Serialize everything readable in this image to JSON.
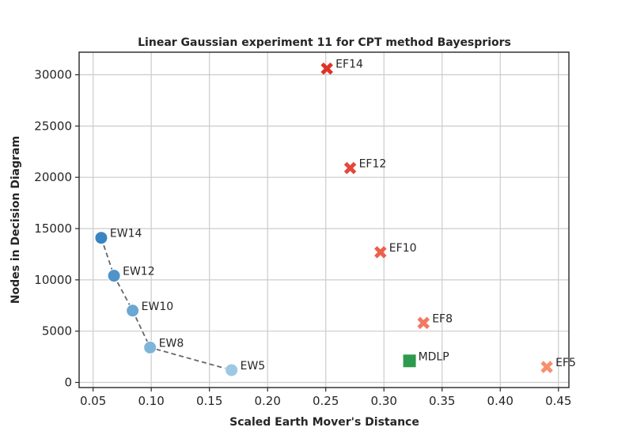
{
  "chart_data": {
    "type": "scatter",
    "title": "Linear Gaussian experiment 11 for CPT method Bayespriors",
    "xlabel": "Scaled Earth Mover's Distance",
    "ylabel": "Nodes in Decision Diagram",
    "xlim": [
      0.038,
      0.459
    ],
    "ylim": [
      -500,
      32200
    ],
    "xticks": [
      0.05,
      0.1,
      0.15,
      0.2,
      0.25,
      0.3,
      0.35,
      0.4,
      0.45
    ],
    "xtick_labels": [
      "0.05",
      "0.10",
      "0.15",
      "0.20",
      "0.25",
      "0.30",
      "0.35",
      "0.40",
      "0.45"
    ],
    "yticks": [
      0,
      5000,
      10000,
      15000,
      20000,
      25000,
      30000
    ],
    "ytick_labels": [
      "0",
      "5000",
      "10000",
      "15000",
      "20000",
      "25000",
      "30000"
    ],
    "grid": true,
    "series": [
      {
        "marker": "circle",
        "connected": true,
        "points": [
          {
            "label": "EW14",
            "x": 0.057,
            "y": 14100,
            "color": "#3a84c3"
          },
          {
            "label": "EW12",
            "x": 0.068,
            "y": 10400,
            "color": "#4f93c9"
          },
          {
            "label": "EW10",
            "x": 0.084,
            "y": 7000,
            "color": "#6aa7d2"
          },
          {
            "label": "EW8",
            "x": 0.099,
            "y": 3400,
            "color": "#7fb4d9"
          },
          {
            "label": "EW5",
            "x": 0.169,
            "y": 1200,
            "color": "#9cc8e3"
          }
        ]
      },
      {
        "marker": "x",
        "connected": false,
        "points": [
          {
            "label": "EF14",
            "x": 0.251,
            "y": 30600,
            "color": "#e03127"
          },
          {
            "label": "EF12",
            "x": 0.271,
            "y": 20900,
            "color": "#e4483a"
          },
          {
            "label": "EF10",
            "x": 0.297,
            "y": 12700,
            "color": "#ed6049"
          },
          {
            "label": "EF8",
            "x": 0.334,
            "y": 5800,
            "color": "#f27860"
          },
          {
            "label": "EF5",
            "x": 0.44,
            "y": 1500,
            "color": "#f7906f"
          }
        ]
      },
      {
        "marker": "square",
        "connected": false,
        "points": [
          {
            "label": "MDLP",
            "x": 0.322,
            "y": 2100,
            "color": "#2e9a4e"
          }
        ]
      }
    ]
  }
}
